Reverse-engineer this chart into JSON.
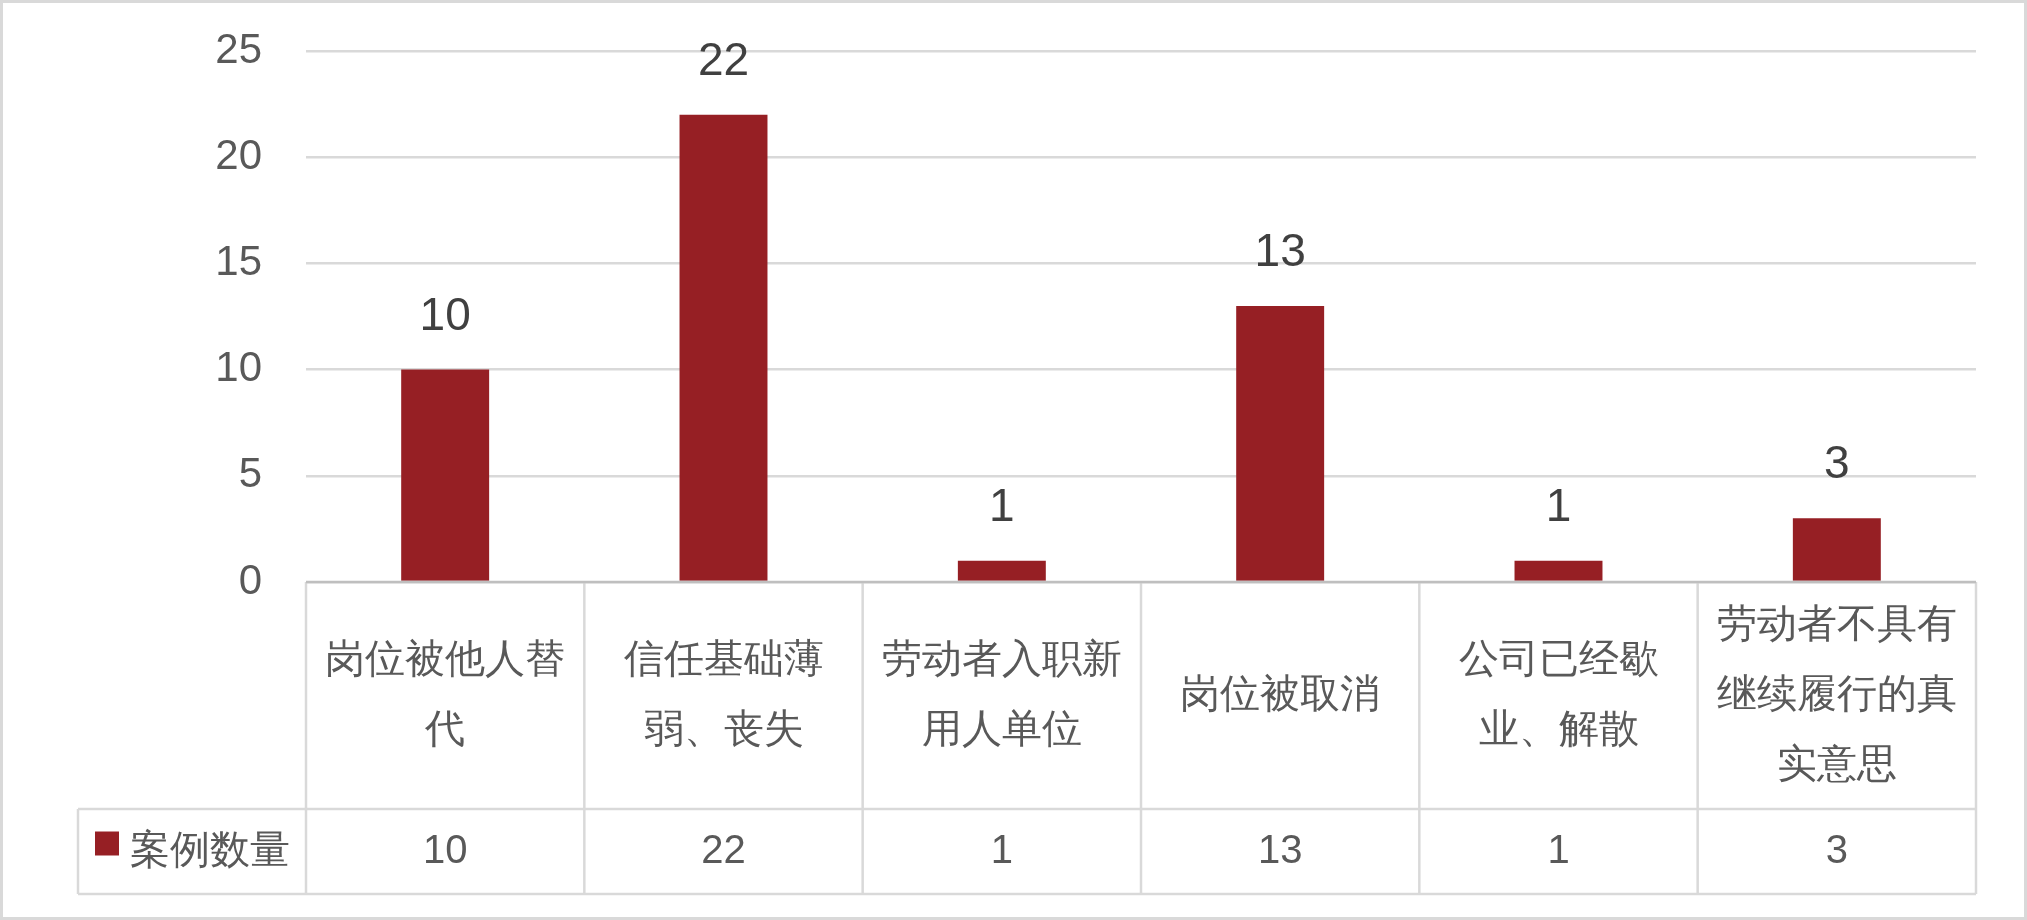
{
  "chart_data": {
    "type": "bar",
    "categories": [
      "岗位被他人替代",
      "信任基础薄弱、丧失",
      "劳动者入职新用人单位",
      "岗位被取消",
      "公司已经歇业、解散",
      "劳动者不具有继续履行的真实意思"
    ],
    "series": [
      {
        "name": "案例数量",
        "color": "#961f24",
        "values": [
          10,
          22,
          1,
          13,
          1,
          3
        ]
      }
    ],
    "ylim": [
      0,
      25
    ],
    "yticks": [
      0,
      5,
      10,
      15,
      20,
      25
    ],
    "grid": "y",
    "data_labels": true,
    "legend": "bottom left",
    "annotations": [
      {
        "text": "10",
        "x": "岗位被他人替代",
        "y": 10
      },
      {
        "text": "22",
        "x": "信任基础薄弱、丧失",
        "y": 22
      },
      {
        "text": "1",
        "x": "劳动者入职新用人单位",
        "y": 1
      },
      {
        "text": "13",
        "x": "岗位被取消",
        "y": 13
      },
      {
        "text": "1",
        "x": "公司已经歇业、解散",
        "y": 1
      },
      {
        "text": "3",
        "x": "劳动者不具有继续履行的真实意思",
        "y": 3
      }
    ]
  }
}
